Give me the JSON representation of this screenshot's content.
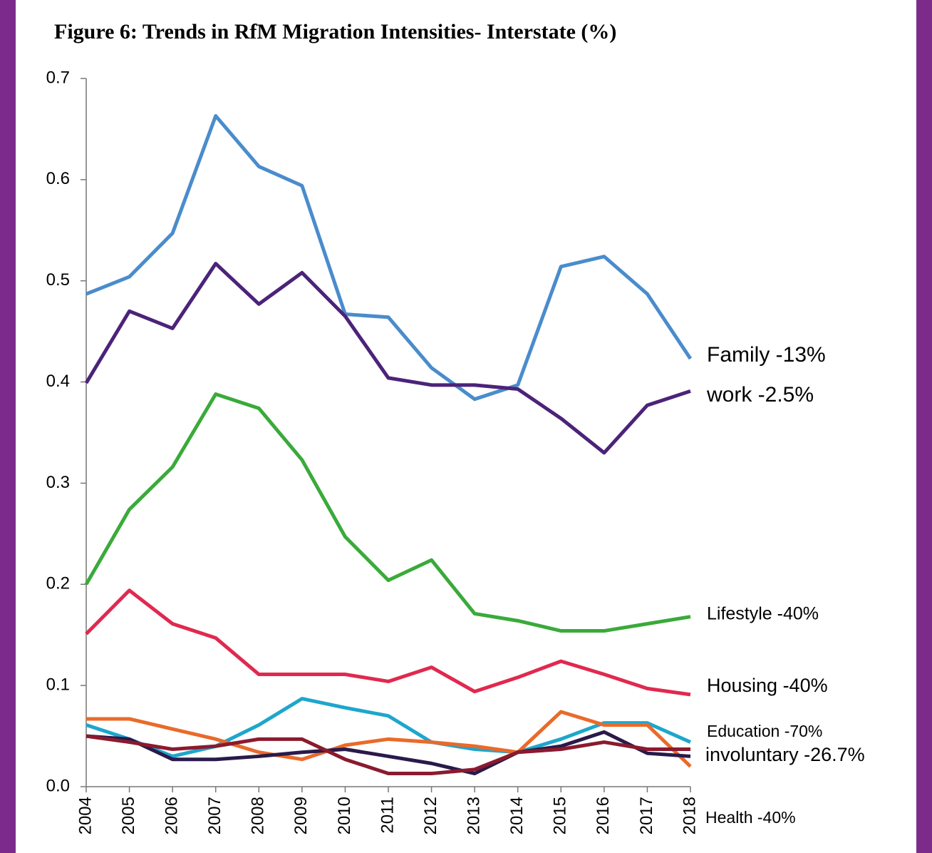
{
  "chart_data": {
    "type": "line",
    "title": "Figure 6: Trends in RfM Migration Intensities- Interstate (%)",
    "categories": [
      "2004",
      "2005",
      "2006",
      "2007",
      "2008",
      "2009",
      "2010",
      "2011",
      "2012",
      "2013",
      "2014",
      "2015",
      "2016",
      "2017",
      "2018"
    ],
    "ylim": [
      0,
      0.7
    ],
    "yticks": [
      {
        "value": 0,
        "label": "0.0"
      },
      0.1,
      0.2,
      0.3,
      0.4,
      0.5,
      0.6,
      0.7
    ],
    "grid": false,
    "series": [
      {
        "color": "#4a8ccc",
        "values": [
          0.487,
          0.504,
          0.547,
          0.663,
          0.613,
          0.594,
          0.467,
          0.464,
          0.414,
          0.383,
          0.397,
          0.514,
          0.524,
          0.487,
          0.423
        ]
      },
      {
        "color": "#4b2379",
        "values": [
          0.399,
          0.47,
          0.453,
          0.517,
          0.477,
          0.508,
          0.465,
          0.404,
          0.397,
          0.397,
          0.393,
          0.364,
          0.33,
          0.377,
          0.391
        ]
      },
      {
        "color": "#3aaa3a",
        "values": [
          0.2,
          0.274,
          0.316,
          0.388,
          0.374,
          0.323,
          0.247,
          0.204,
          0.224,
          0.171,
          0.164,
          0.154,
          0.154,
          0.161,
          0.168
        ]
      },
      {
        "color": "#e0294f",
        "values": [
          0.151,
          0.194,
          0.161,
          0.147,
          0.111,
          0.111,
          0.111,
          0.104,
          0.118,
          0.094,
          0.108,
          0.124,
          0.111,
          0.097,
          0.091
        ]
      },
      {
        "color": "#1ea6cc",
        "values": [
          0.061,
          0.047,
          0.03,
          0.04,
          0.061,
          0.087,
          0.078,
          0.07,
          0.044,
          0.037,
          0.034,
          0.047,
          0.063,
          0.063,
          0.044
        ]
      },
      {
        "color": "#ea6a2a",
        "values": [
          0.067,
          0.067,
          0.057,
          0.047,
          0.034,
          0.027,
          0.041,
          0.047,
          0.044,
          0.04,
          0.034,
          0.074,
          0.061,
          0.061,
          0.02
        ]
      },
      {
        "color": "#2a1a4a",
        "values": [
          0.05,
          0.047,
          0.027,
          0.027,
          0.03,
          0.034,
          0.037,
          0.03,
          0.023,
          0.013,
          0.034,
          0.04,
          0.054,
          0.033,
          0.03
        ]
      },
      {
        "color": "#8b1a2e",
        "values": [
          0.05,
          0.044,
          0.037,
          0.04,
          0.047,
          0.047,
          0.027,
          0.013,
          0.013,
          0.017,
          0.034,
          0.037,
          0.044,
          0.037,
          0.037
        ]
      }
    ],
    "annotations": [
      "Family -13%",
      "work -2.5%",
      "Lifestyle -40%",
      "Housing -40%",
      "Education -70%",
      "involuntary  -26.7%",
      "Health  -40%"
    ]
  }
}
